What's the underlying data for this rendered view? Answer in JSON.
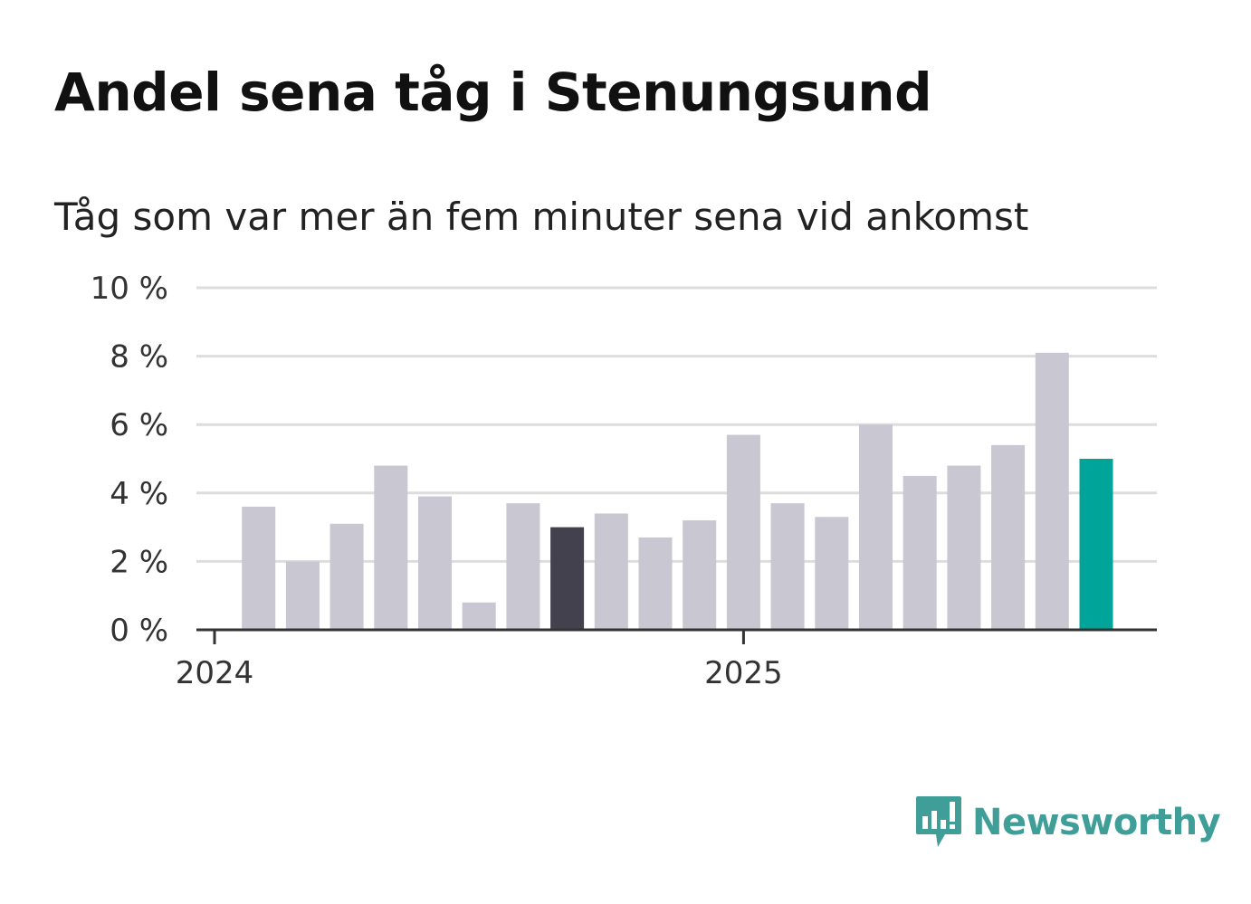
{
  "title": "Andel sena tåg i Stenungsund",
  "subtitle": "Tåg som var mer än fem minuter sena vid ankomst",
  "brand": {
    "name": "Newsworthy",
    "color": "#3f9e98",
    "icon": "newsworthy-logo-icon"
  },
  "colors": {
    "bar": "#c8c7d2",
    "highlight_dark": "#42414d",
    "highlight_latest": "#00a499",
    "grid": "#dddddd",
    "axis": "#333333"
  },
  "chart_data": {
    "type": "bar",
    "title": "Andel sena tåg i Stenungsund",
    "subtitle": "Tåg som var mer än fem minuter sena vid ankomst",
    "xlabel": "",
    "ylabel": "",
    "categories": [
      "2024-02",
      "2024-03",
      "2024-04",
      "2024-05",
      "2024-06",
      "2024-07",
      "2024-08",
      "2024-09",
      "2024-10",
      "2024-11",
      "2024-12",
      "2025-01",
      "2025-02",
      "2025-03",
      "2025-04",
      "2025-05",
      "2025-06",
      "2025-07",
      "2025-08",
      "2025-09"
    ],
    "values": [
      3.6,
      2.0,
      3.1,
      4.8,
      3.9,
      0.8,
      3.7,
      3.0,
      3.4,
      2.7,
      3.2,
      5.7,
      3.7,
      3.3,
      6.0,
      4.5,
      4.8,
      5.4,
      8.1,
      5.0
    ],
    "highlight": {
      "2024-09": "dark",
      "2025-09": "latest"
    },
    "ylim": [
      0,
      10
    ],
    "y_ticks": [
      0,
      2,
      4,
      6,
      8,
      10
    ],
    "y_tick_labels": [
      "0 %",
      "2 %",
      "4 %",
      "6 %",
      "8 %",
      "10 %"
    ],
    "x_ticks": [
      {
        "at": "2024-01",
        "label": "2024"
      },
      {
        "at": "2025-01",
        "label": "2025"
      }
    ],
    "grid": true,
    "legend": "none"
  }
}
